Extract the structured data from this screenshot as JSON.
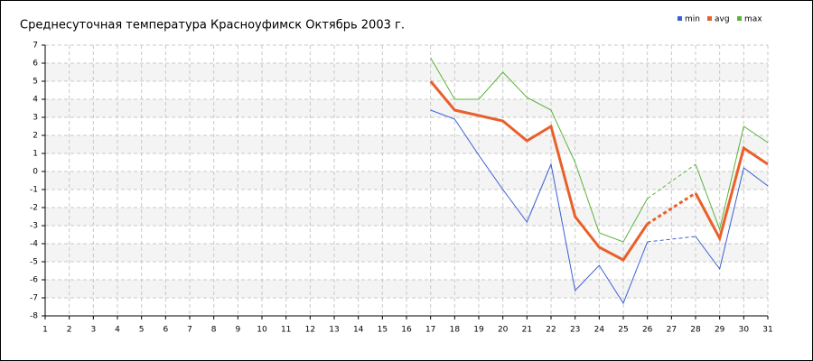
{
  "chart_data": {
    "type": "line",
    "title": "Среднесуточная температура Красноуфимск  Октябрь 2003 г.",
    "x": [
      1,
      2,
      3,
      4,
      5,
      6,
      7,
      8,
      9,
      10,
      11,
      12,
      13,
      14,
      15,
      16,
      17,
      18,
      19,
      20,
      21,
      22,
      23,
      24,
      25,
      26,
      27,
      28,
      29,
      30,
      31
    ],
    "xlim": [
      1,
      31
    ],
    "xticks": [
      1,
      2,
      3,
      4,
      5,
      6,
      7,
      8,
      9,
      10,
      11,
      12,
      13,
      14,
      15,
      16,
      17,
      18,
      19,
      20,
      21,
      22,
      23,
      24,
      25,
      26,
      27,
      28,
      29,
      30,
      31
    ],
    "ylim": [
      -8,
      7
    ],
    "yticks": [
      -8,
      -7,
      -6,
      -5,
      -4,
      -3,
      -2,
      -1,
      0,
      1,
      2,
      3,
      4,
      5,
      6,
      7
    ],
    "grid": true,
    "legend": "top-right",
    "series": [
      {
        "name": "min",
        "color": "#3a5fd4",
        "values": [
          null,
          null,
          null,
          null,
          null,
          null,
          null,
          null,
          null,
          null,
          null,
          null,
          null,
          null,
          null,
          null,
          3.4,
          2.9,
          0.9,
          -1.0,
          -2.8,
          0.4,
          -6.6,
          -5.2,
          -7.3,
          -3.9,
          null,
          -3.6,
          -5.4,
          0.2,
          -0.8
        ]
      },
      {
        "name": "avg",
        "color": "#e8602a",
        "values": [
          null,
          null,
          null,
          null,
          null,
          null,
          null,
          null,
          null,
          null,
          null,
          null,
          null,
          null,
          null,
          null,
          5.0,
          3.4,
          3.1,
          2.8,
          1.7,
          2.5,
          -2.5,
          -4.2,
          -4.9,
          -2.9,
          null,
          -1.2,
          -3.7,
          1.3,
          0.4
        ]
      },
      {
        "name": "max",
        "color": "#5cb33a",
        "values": [
          null,
          null,
          null,
          null,
          null,
          null,
          null,
          null,
          null,
          null,
          null,
          null,
          null,
          null,
          null,
          null,
          6.3,
          4.0,
          4.0,
          5.5,
          4.1,
          3.4,
          0.5,
          -3.4,
          -3.9,
          -1.5,
          null,
          0.4,
          -3.2,
          2.5,
          1.6
        ]
      }
    ]
  }
}
